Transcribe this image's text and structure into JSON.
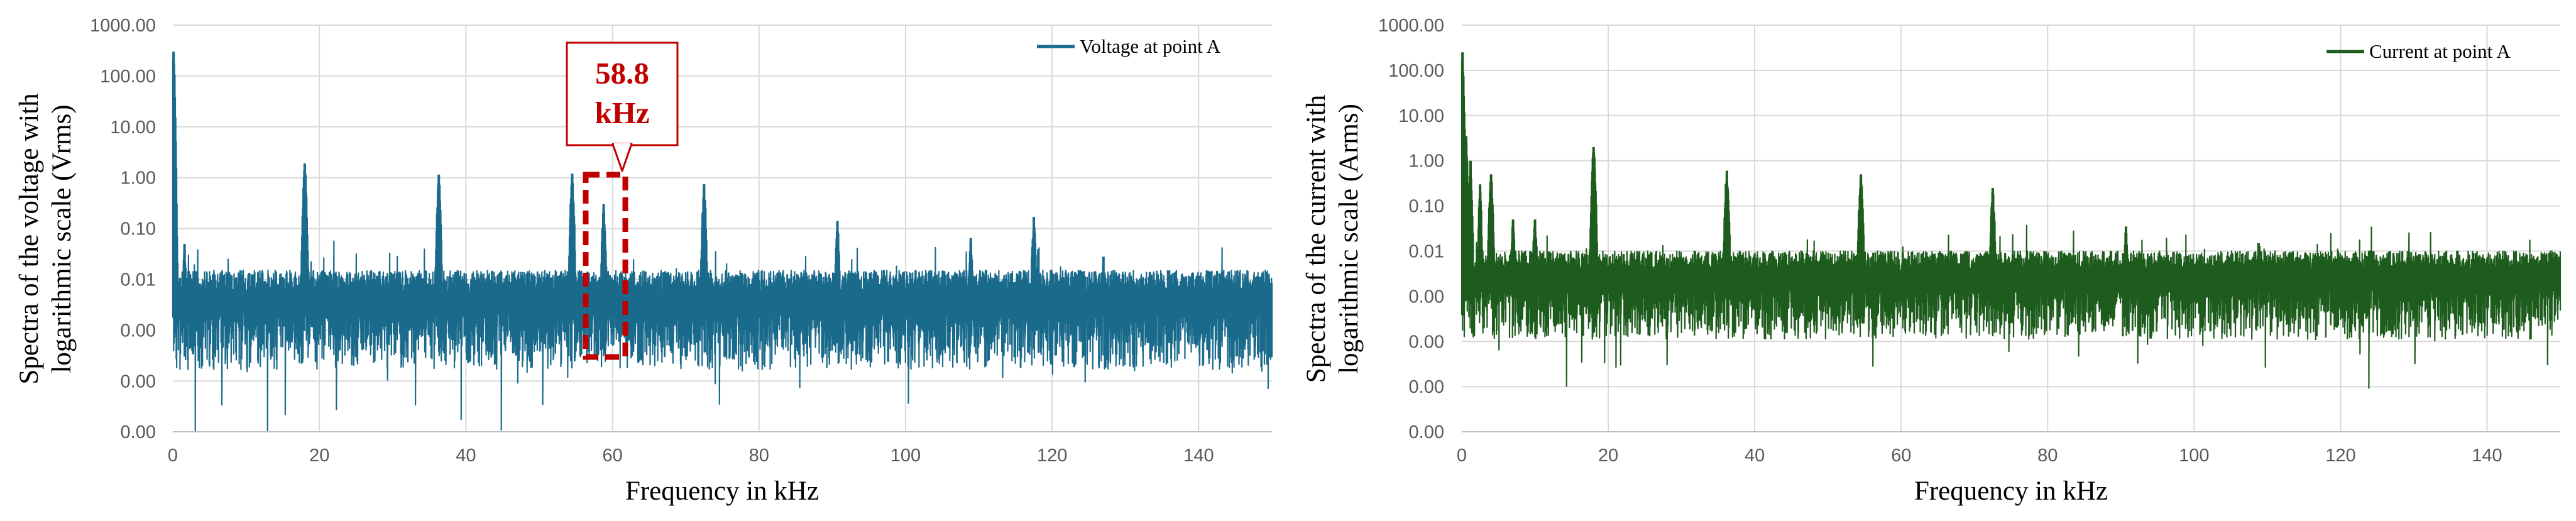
{
  "chart_data": [
    {
      "type": "line",
      "xlabel": "Frequency in kHz",
      "ylabel": [
        "Spectra of the voltage with",
        "logarithmic scale (Vrms)"
      ],
      "xlim": [
        0,
        150
      ],
      "x_ticks": [
        "0",
        "20",
        "40",
        "60",
        "80",
        "100",
        "120",
        "140"
      ],
      "y_scale": "log",
      "y_tick_labels": [
        "1000.00",
        "100.00",
        "10.00",
        "1.00",
        "0.10",
        "0.01",
        "0.00",
        "0.00",
        "0.00"
      ],
      "grid": true,
      "legend_position": "top-right",
      "series": [
        {
          "name": "Voltage at point A",
          "color": "#1a6a8c",
          "noise_floor": 0.003,
          "peaks": [
            {
              "x": 0.1,
              "y": 300
            },
            {
              "x": 0.4,
              "y": 0.3
            },
            {
              "x": 1.6,
              "y": 0.05
            },
            {
              "x": 18.0,
              "y": 1.9
            },
            {
              "x": 36.3,
              "y": 1.15
            },
            {
              "x": 54.5,
              "y": 1.2
            },
            {
              "x": 58.8,
              "y": 0.3
            },
            {
              "x": 72.5,
              "y": 0.75
            },
            {
              "x": 90.7,
              "y": 0.14
            },
            {
              "x": 108.9,
              "y": 0.065
            },
            {
              "x": 117.5,
              "y": 0.17
            },
            {
              "x": 127.0,
              "y": 0.028
            }
          ]
        }
      ],
      "annotation": {
        "text_line1": "58.8",
        "text_line2": "kHz",
        "x": 58.8,
        "color": "#c00000"
      }
    },
    {
      "type": "line",
      "xlabel": "Frequency in kHz",
      "ylabel": [
        "Spectra of the current with",
        "logarithmic scale (Arms)"
      ],
      "xlim": [
        0,
        150
      ],
      "x_ticks": [
        "0",
        "20",
        "40",
        "60",
        "80",
        "100",
        "120",
        "140"
      ],
      "y_scale": "log",
      "y_tick_labels": [
        "1000.00",
        "100.00",
        "10.00",
        "1.00",
        "0.10",
        "0.01",
        "0.00",
        "0.00",
        "0.00",
        "0.00"
      ],
      "grid": true,
      "legend_position": "top-right",
      "series": [
        {
          "name": "Current at point A",
          "color": "#1e5c1e",
          "noise_floor": 0.002,
          "peaks": [
            {
              "x": 0.1,
              "y": 250
            },
            {
              "x": 0.6,
              "y": 3.5
            },
            {
              "x": 1.2,
              "y": 1.0
            },
            {
              "x": 2.5,
              "y": 0.3
            },
            {
              "x": 4.0,
              "y": 0.5
            },
            {
              "x": 7.0,
              "y": 0.05
            },
            {
              "x": 10.0,
              "y": 0.05
            },
            {
              "x": 18.0,
              "y": 2.0
            },
            {
              "x": 24.0,
              "y": 0.01
            },
            {
              "x": 36.2,
              "y": 0.6
            },
            {
              "x": 54.5,
              "y": 0.5
            },
            {
              "x": 72.5,
              "y": 0.25
            },
            {
              "x": 90.7,
              "y": 0.035
            },
            {
              "x": 108.8,
              "y": 0.015
            }
          ]
        }
      ]
    }
  ]
}
